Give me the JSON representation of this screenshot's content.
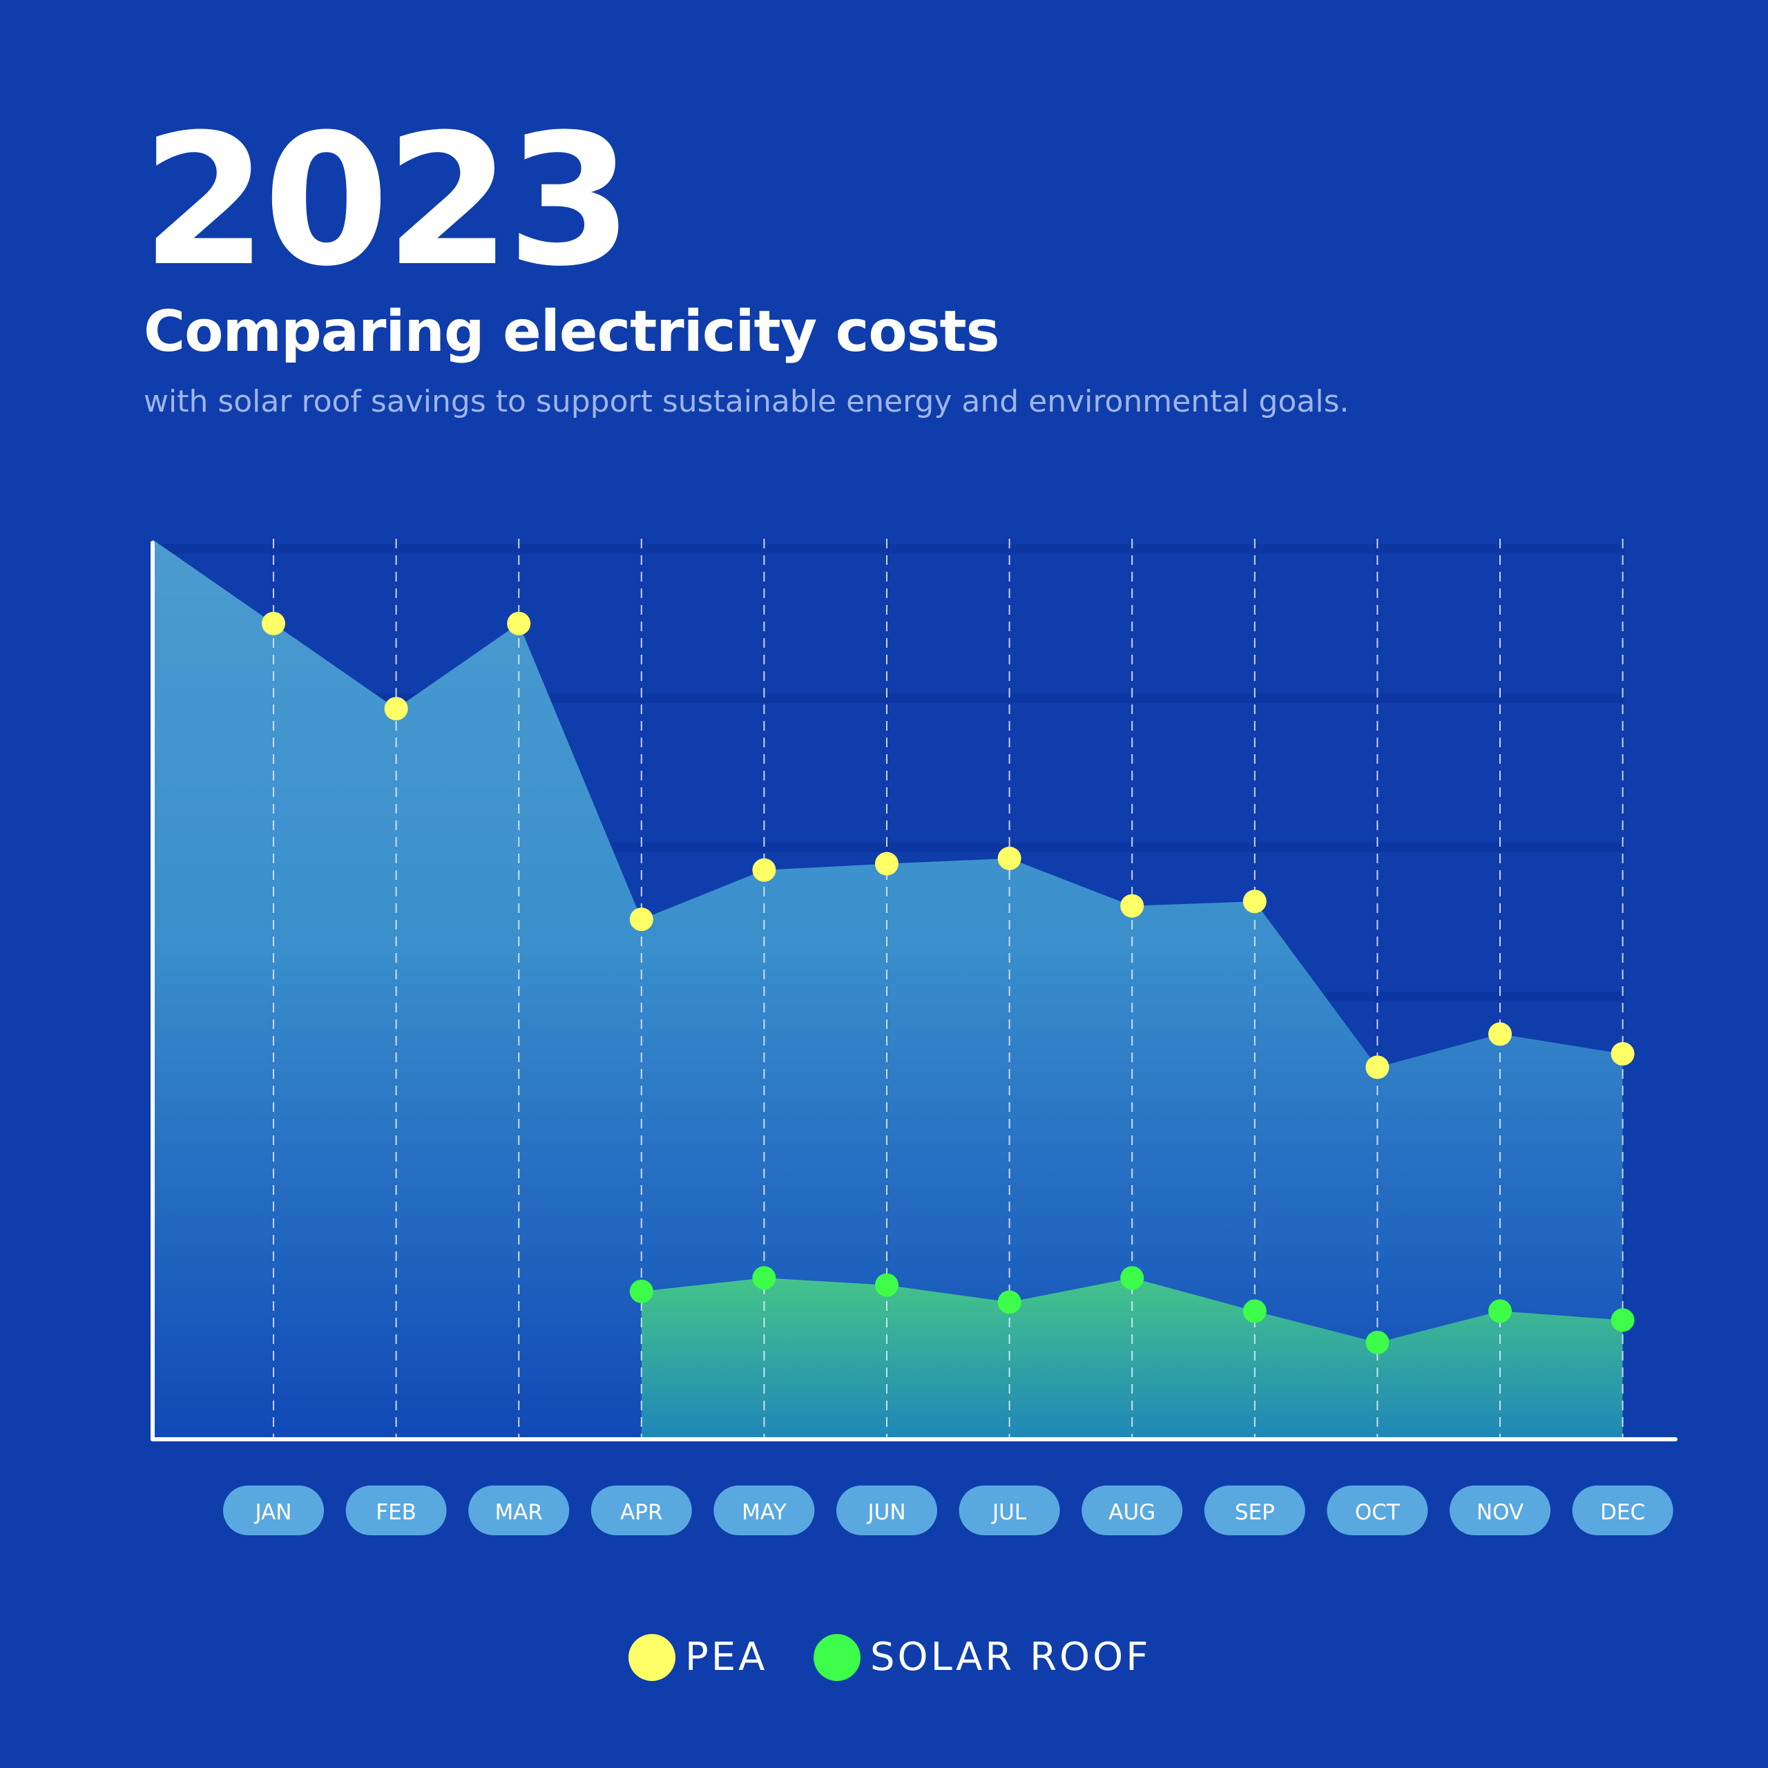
{
  "header": {
    "year": "2023",
    "title": "Comparing electricity costs",
    "subtitle": "with solar roof savings to support sustainable energy and environmental goals."
  },
  "legend": {
    "pea_label": "PEA",
    "solar_label": "SOLAR ROOF"
  },
  "colors": {
    "background": "#0f3dab",
    "pea_marker": "#ffff66",
    "solar_marker": "#3dfc4a",
    "pea_area_top": "#4b9bd0",
    "pea_area_bottom": "#1049b6",
    "solar_area_top": "#44c48a",
    "solar_area_bottom": "#1f86b8",
    "month_pill": "#5aa8e0"
  },
  "chart_data": {
    "type": "area",
    "title": "Comparing electricity costs",
    "categories": [
      "JAN",
      "FEB",
      "MAR",
      "APR",
      "MAY",
      "JUN",
      "JUL",
      "AUG",
      "SEP",
      "OCT",
      "NOV",
      "DEC"
    ],
    "series": [
      {
        "name": "PEA",
        "values": [
          91,
          81.5,
          91,
          58,
          63.5,
          64.2,
          64.8,
          59.5,
          60,
          41.5,
          45.2,
          43
        ]
      },
      {
        "name": "SOLAR ROOF",
        "values": [
          null,
          null,
          null,
          16.5,
          18,
          17.2,
          15.3,
          18,
          14.3,
          10.8,
          14.3,
          13.3
        ]
      }
    ],
    "ylim": [
      0,
      100
    ],
    "grid": true,
    "legend_position": "bottom"
  }
}
